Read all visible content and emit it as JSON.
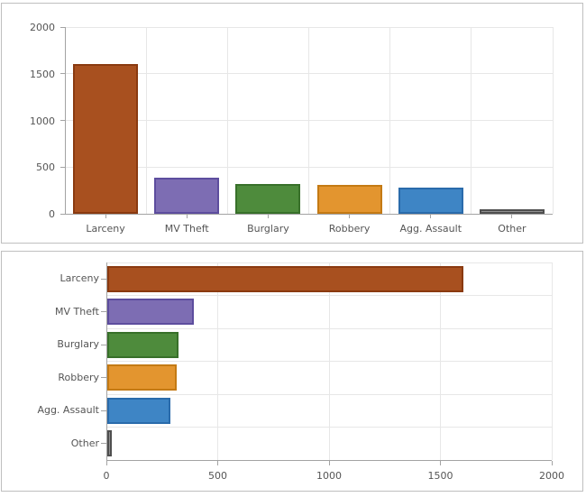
{
  "chart_data": [
    {
      "type": "bar",
      "orientation": "vertical",
      "title": "",
      "xlabel": "",
      "ylabel": "",
      "categories": [
        "Larceny",
        "MV Theft",
        "Burglary",
        "Robbery",
        "Agg. Assault",
        "Other"
      ],
      "values": [
        1600,
        390,
        320,
        310,
        285,
        20
      ],
      "ylim": [
        0,
        2000
      ],
      "yticks": [
        0,
        500,
        1000,
        1500,
        2000
      ],
      "grid": true,
      "legend": "none"
    },
    {
      "type": "bar",
      "orientation": "horizontal",
      "title": "",
      "xlabel": "",
      "ylabel": "",
      "categories": [
        "Larceny",
        "MV Theft",
        "Burglary",
        "Robbery",
        "Agg. Assault",
        "Other"
      ],
      "values": [
        1600,
        390,
        320,
        310,
        285,
        20
      ],
      "xlim": [
        0,
        2000
      ],
      "xticks": [
        0,
        500,
        1000,
        1500,
        2000
      ],
      "grid": true,
      "legend": "none"
    }
  ],
  "colors": {
    "bar_fills": [
      "#a8501f",
      "#7d6db3",
      "#4e8b3c",
      "#e3952f",
      "#3e85c5",
      "#909090"
    ],
    "bar_borders": [
      "#8a3a10",
      "#5d4d9e",
      "#38702a",
      "#c47a14",
      "#2a6bab",
      "#4f4f4f"
    ],
    "grid": "#e7e7e7",
    "axis": "#a3a3a3",
    "text": "#555555",
    "panel_border": "#bfbfbf"
  }
}
